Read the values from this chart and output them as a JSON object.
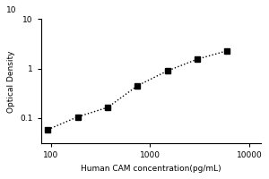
{
  "x": [
    93.75,
    187.5,
    375,
    750,
    1500,
    3000,
    6000
  ],
  "y": [
    0.058,
    0.105,
    0.163,
    0.45,
    0.9,
    1.55,
    2.3
  ],
  "xlabel": "Human CAM concentration(pg/mL)",
  "ylabel": "Optical Density",
  "xlim": [
    80,
    13000
  ],
  "ylim": [
    0.03,
    10
  ],
  "xticks": [
    100,
    1000,
    10000
  ],
  "xtick_labels": [
    "100",
    "1000",
    "10000"
  ],
  "yticks": [
    0.1,
    1,
    10
  ],
  "ytick_labels": [
    "0.1",
    "1",
    "10"
  ],
  "marker": "s",
  "marker_color": "#000000",
  "marker_size": 4,
  "line_style": "dotted",
  "line_color": "#000000",
  "line_width": 1.0,
  "background_color": "#ffffff",
  "top_label": "10",
  "xlabel_fontsize": 6.5,
  "ylabel_fontsize": 6.5,
  "tick_fontsize": 6.5
}
